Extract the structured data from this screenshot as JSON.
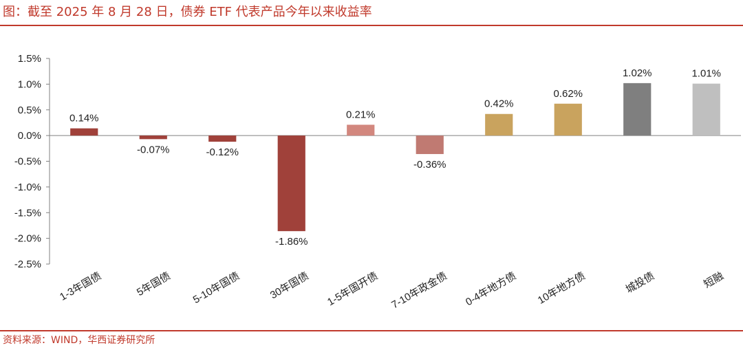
{
  "title": "图：截至 2025 年 8 月 28 日，债券 ETF 代表产品今年以来收益率",
  "source": "资料来源：WIND，华西证券研究所",
  "chart_data": {
    "type": "bar",
    "categories": [
      "1-3年国债",
      "5年国债",
      "5-10年国债",
      "30年国债",
      "1-5年国开债",
      "7-10年政金债",
      "0-4年地方债",
      "10年地方债",
      "城投债",
      "短融"
    ],
    "values": [
      0.14,
      -0.07,
      -0.12,
      -1.86,
      0.21,
      -0.36,
      0.42,
      0.62,
      1.02,
      1.01
    ],
    "data_labels": [
      "0.14%",
      "-0.07%",
      "-0.12%",
      "-1.86%",
      "0.21%",
      "-0.36%",
      "0.42%",
      "0.62%",
      "1.02%",
      "1.01%"
    ],
    "colors": [
      "#a0413a",
      "#a0413a",
      "#a0413a",
      "#a0413a",
      "#d2877e",
      "#c07a72",
      "#c9a35e",
      "#c9a35e",
      "#7f7f7f",
      "#bfbfbf"
    ],
    "ylim": [
      -2.5,
      1.5
    ],
    "yticks": [
      1.5,
      1.0,
      0.5,
      0.0,
      -0.5,
      -1.0,
      -1.5,
      -2.0,
      -2.5
    ],
    "ytick_labels": [
      "1.5%",
      "1.0%",
      "0.5%",
      "0.0%",
      "-0.5%",
      "-1.0%",
      "-1.5%",
      "-2.0%",
      "-2.5%"
    ],
    "grid": false,
    "legend": "none",
    "xlabel": "",
    "ylabel": ""
  }
}
